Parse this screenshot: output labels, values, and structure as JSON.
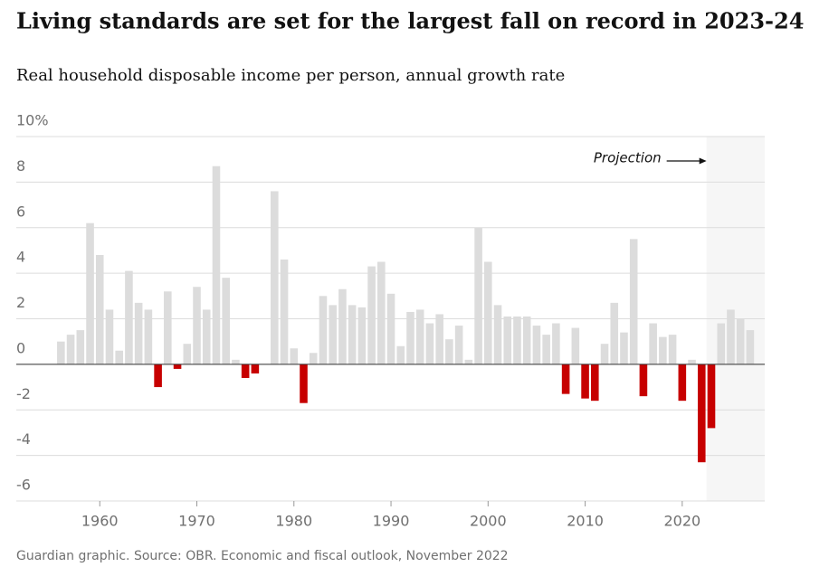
{
  "chart_data": {
    "type": "bar",
    "title": "Living standards are set for the largest fall on record in 2023-24",
    "subtitle": "Real household disposable income per person, annual growth rate",
    "source": "Guardian graphic. Source: OBR. Economic and fiscal outlook, November 2022",
    "annotation": "Projection",
    "projection_from": 2023,
    "x": [
      1956,
      1957,
      1958,
      1959,
      1960,
      1961,
      1962,
      1963,
      1964,
      1965,
      1966,
      1967,
      1968,
      1969,
      1970,
      1971,
      1972,
      1973,
      1974,
      1975,
      1976,
      1977,
      1978,
      1979,
      1980,
      1981,
      1982,
      1983,
      1984,
      1985,
      1986,
      1987,
      1988,
      1989,
      1990,
      1991,
      1992,
      1993,
      1994,
      1995,
      1996,
      1997,
      1998,
      1999,
      2000,
      2001,
      2002,
      2003,
      2004,
      2005,
      2006,
      2007,
      2008,
      2009,
      2010,
      2011,
      2012,
      2013,
      2014,
      2015,
      2016,
      2017,
      2018,
      2019,
      2020,
      2021,
      2022,
      2023,
      2024,
      2025,
      2026,
      2027
    ],
    "values": [
      1.0,
      1.3,
      1.5,
      6.2,
      4.8,
      2.4,
      0.6,
      4.1,
      2.7,
      2.4,
      -1.0,
      3.2,
      -0.2,
      0.9,
      3.4,
      2.4,
      8.7,
      3.8,
      0.2,
      -0.6,
      -0.4,
      0,
      7.6,
      4.6,
      0.7,
      -1.7,
      0.5,
      3.0,
      2.6,
      3.3,
      2.6,
      2.5,
      4.3,
      4.5,
      3.1,
      0.8,
      2.3,
      2.4,
      1.8,
      2.2,
      1.1,
      1.7,
      0.2,
      6.0,
      4.5,
      2.6,
      2.1,
      2.1,
      2.1,
      1.7,
      1.3,
      1.8,
      -1.3,
      1.6,
      -1.5,
      -1.6,
      0.9,
      2.7,
      1.4,
      5.5,
      -1.4,
      1.8,
      1.2,
      1.3,
      -1.6,
      0.2,
      -4.3,
      -2.8,
      1.8,
      2.4,
      2.0,
      1.5
    ],
    "color": "#dcdcdc",
    "negative_color": "#c70000",
    "xlim": [
      1951.4,
      2028.5
    ],
    "xticks": [
      1960,
      1970,
      1980,
      1990,
      2000,
      2010,
      2020
    ],
    "ylim": [
      -6,
      10
    ],
    "yticks": [
      {
        "value": 10,
        "label": "10%"
      },
      8,
      6,
      4,
      2,
      0,
      -2,
      -4,
      -6
    ],
    "grid": true
  }
}
